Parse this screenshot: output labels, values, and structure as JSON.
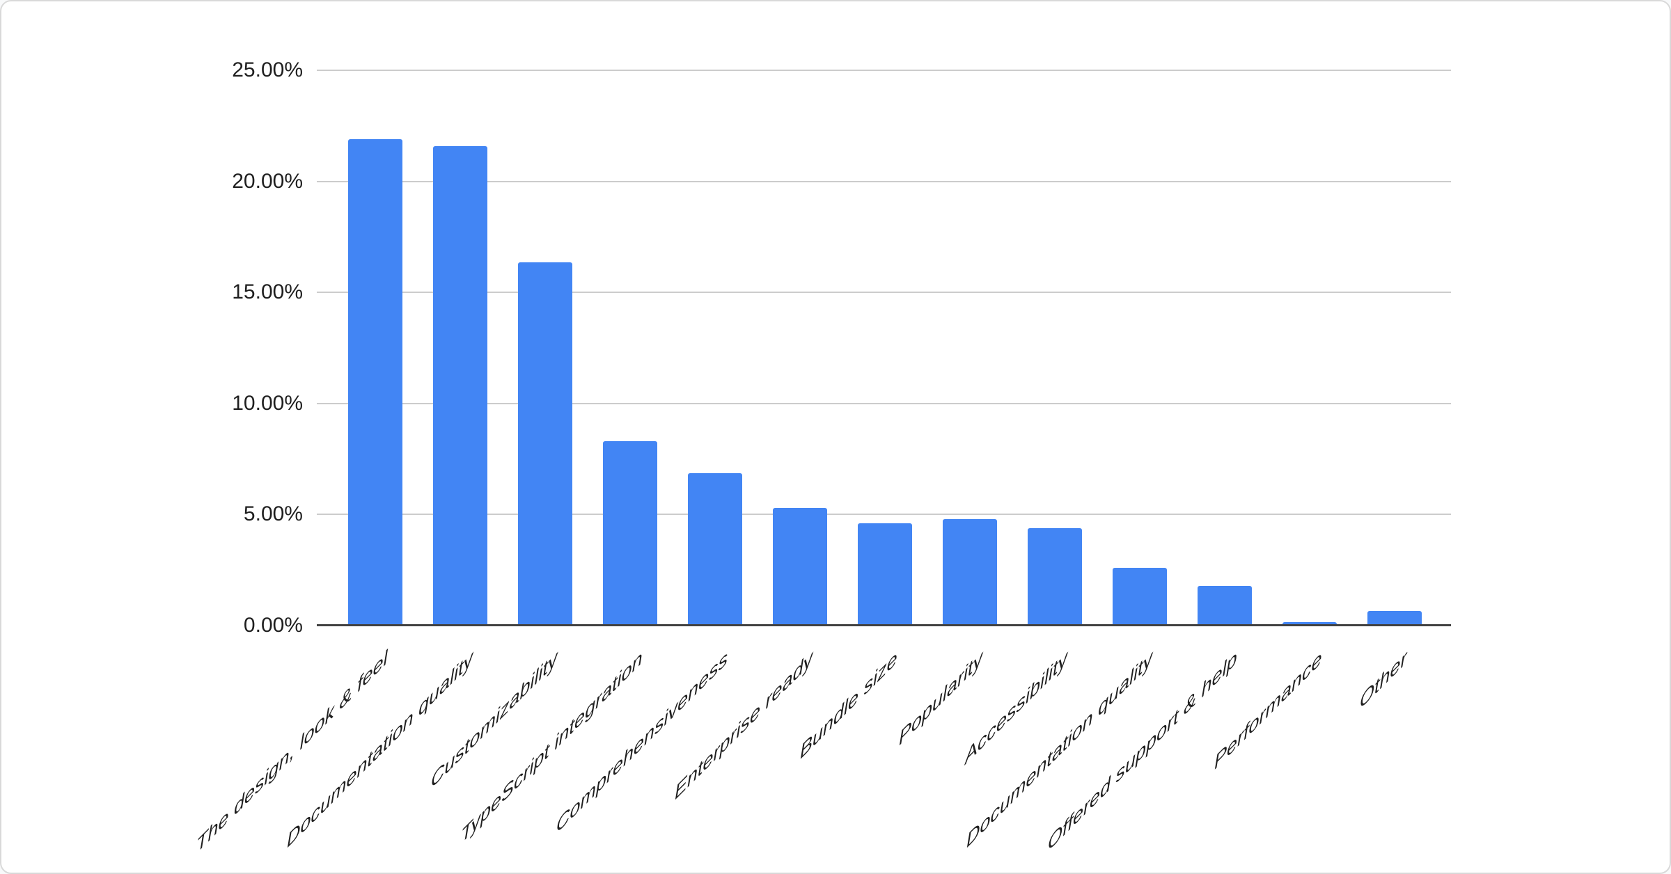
{
  "chart_data": {
    "type": "bar",
    "title": "",
    "xlabel": "",
    "ylabel": "",
    "categories": [
      "The design, look & feel",
      "Documentation quality",
      "Customizability",
      "TypeScript integration",
      "Comprehensiveness",
      "Enterprise ready",
      "Bundle size",
      "Popularity",
      "Accessibility",
      "Documentation quality",
      "Offered support & help",
      "Performance",
      "Other"
    ],
    "values": [
      21.9,
      21.6,
      16.35,
      8.3,
      6.85,
      5.3,
      4.6,
      4.8,
      4.4,
      2.6,
      1.8,
      0.15,
      0.65
    ],
    "value_unit": "%",
    "ylim": [
      0,
      25
    ],
    "y_ticks": [
      {
        "value": 25,
        "label": "25.00%"
      },
      {
        "value": 20,
        "label": "20.00%"
      },
      {
        "value": 15,
        "label": "15.00%"
      },
      {
        "value": 10,
        "label": "10.00%"
      },
      {
        "value": 5,
        "label": "5.00%"
      },
      {
        "value": 0,
        "label": "0.00%"
      }
    ],
    "grid": true,
    "legend": "none",
    "colors": {
      "bar": "#4285f4",
      "gridline": "#cccccc",
      "axis_line": "#424242",
      "tick_label": "#1f1f1f",
      "category_label": "#1f1f1f",
      "card_border": "#d9d9d9",
      "card_background": "#ffffff"
    }
  }
}
